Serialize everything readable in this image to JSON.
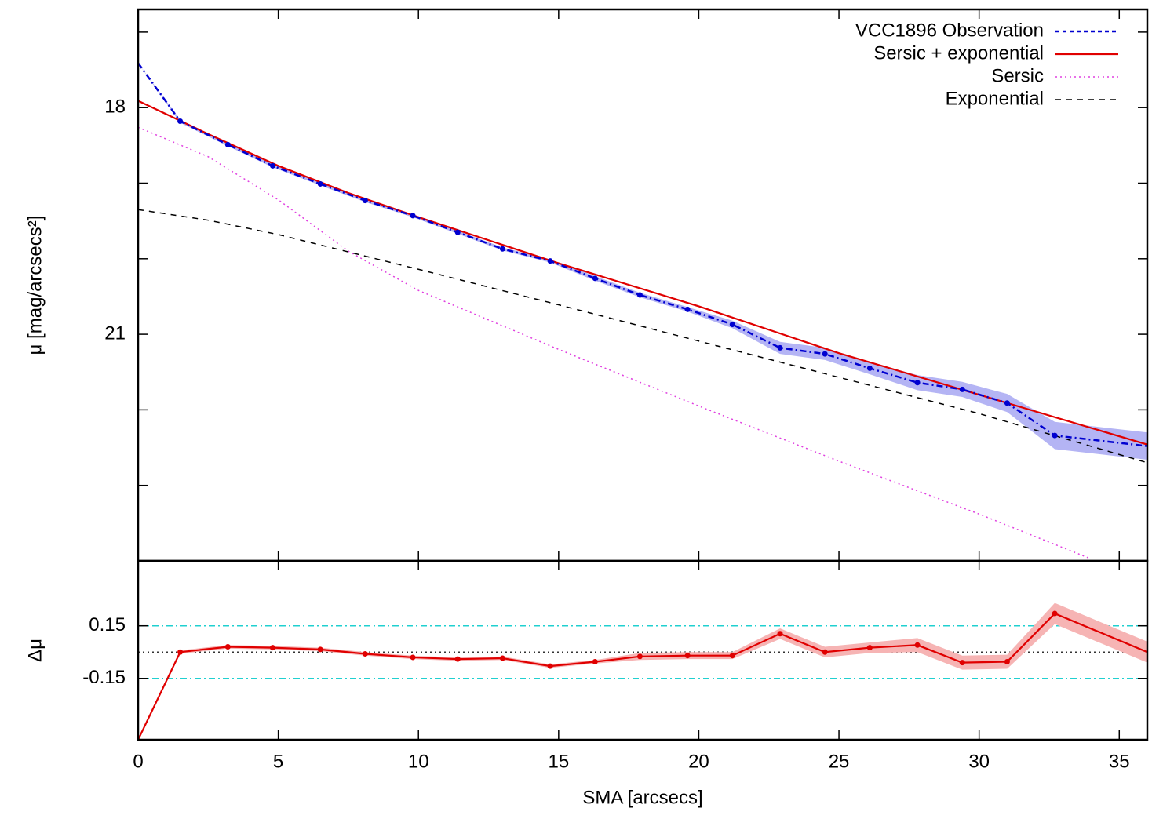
{
  "chart_data": [
    {
      "type": "line",
      "ylabel": "μ [mag/arcsecs²]",
      "xlim": [
        0,
        36
      ],
      "xticks": [
        0,
        5,
        10,
        15,
        20,
        25,
        30,
        35
      ],
      "show_xtick_labels": false,
      "ylim": [
        16.7,
        24
      ],
      "y_inverted": true,
      "yticks": [
        18,
        21
      ],
      "y_minor_ticks": [
        17,
        19,
        20,
        22,
        23
      ],
      "legend": "upper right",
      "series": [
        {
          "name": "VCC1896 Observation",
          "color": "#0000d0",
          "style": "dash-dot",
          "markers": true,
          "band_color": "#b4b4f4",
          "x": [
            0,
            1.5,
            3.2,
            4.8,
            6.5,
            8.1,
            9.8,
            11.4,
            13.0,
            14.7,
            16.3,
            17.9,
            19.6,
            21.2,
            22.9,
            24.5,
            26.1,
            27.8,
            29.4,
            31.0,
            32.7,
            36
          ],
          "values": [
            17.41,
            18.18,
            18.49,
            18.77,
            19.01,
            19.23,
            19.43,
            19.65,
            19.87,
            20.03,
            20.26,
            20.48,
            20.67,
            20.87,
            21.18,
            21.26,
            21.45,
            21.64,
            21.73,
            21.91,
            22.34,
            22.48
          ],
          "errors": [
            0,
            0.02,
            0.02,
            0.02,
            0.02,
            0.02,
            0.02,
            0.02,
            0.02,
            0.02,
            0.03,
            0.03,
            0.03,
            0.05,
            0.08,
            0.08,
            0.08,
            0.1,
            0.1,
            0.12,
            0.18,
            0.18
          ]
        },
        {
          "name": "Sersic + exponential",
          "color": "#e00000",
          "style": "solid",
          "x": [
            0,
            2.5,
            5,
            7.5,
            10,
            15,
            20,
            25,
            30,
            36
          ],
          "values": [
            17.91,
            18.35,
            18.77,
            19.13,
            19.45,
            20.06,
            20.63,
            21.25,
            21.8,
            22.46
          ]
        },
        {
          "name": "Sersic",
          "color": "#e040e0",
          "style": "dotted",
          "x": [
            0,
            2.5,
            5,
            7.5,
            10,
            15,
            20,
            25,
            30,
            33.9
          ],
          "values": [
            18.26,
            18.65,
            19.22,
            19.9,
            20.42,
            21.2,
            21.95,
            22.68,
            23.38,
            23.96
          ]
        },
        {
          "name": "Exponential",
          "color": "#000000",
          "style": "dashed",
          "x": [
            0,
            2.5,
            5,
            10,
            15,
            20,
            25,
            30,
            36
          ],
          "values": [
            19.35,
            19.49,
            19.68,
            20.14,
            20.61,
            21.09,
            21.57,
            22.05,
            22.7
          ]
        }
      ]
    },
    {
      "type": "line",
      "xlabel": "SMA [arcsecs]",
      "ylabel": "Δμ",
      "xlim": [
        0,
        36
      ],
      "xticks": [
        0,
        5,
        10,
        15,
        20,
        25,
        30,
        35
      ],
      "show_xtick_labels": true,
      "ylim": [
        -0.5,
        0.52
      ],
      "yticks": [
        0.15,
        -0.15
      ],
      "ref_lines": [
        {
          "value": 0.15,
          "color": "#20d0d0",
          "style": "dash-dot"
        },
        {
          "value": 0,
          "color": "#333333",
          "style": "dotted"
        },
        {
          "value": -0.15,
          "color": "#20d0d0",
          "style": "dash-dot"
        }
      ],
      "series": [
        {
          "color": "#e00000",
          "style": "solid",
          "markers": true,
          "band_color": "#f6b4b4",
          "x": [
            0,
            1.5,
            3.2,
            4.8,
            6.5,
            8.1,
            9.8,
            11.4,
            13.0,
            14.7,
            16.3,
            17.9,
            19.6,
            21.2,
            22.9,
            24.5,
            26.1,
            27.8,
            29.4,
            31.0,
            32.7,
            36
          ],
          "values": [
            -0.5,
            0,
            0.03,
            0.025,
            0.015,
            -0.01,
            -0.03,
            -0.04,
            -0.035,
            -0.08,
            -0.055,
            -0.025,
            -0.02,
            -0.02,
            0.105,
            0,
            0.025,
            0.04,
            -0.06,
            -0.055,
            0.22,
            0
          ],
          "errors": [
            0,
            0.01,
            0.01,
            0.01,
            0.01,
            0.01,
            0.01,
            0.01,
            0.01,
            0.01,
            0.01,
            0.02,
            0.02,
            0.02,
            0.03,
            0.03,
            0.03,
            0.04,
            0.04,
            0.04,
            0.06,
            0.06
          ]
        }
      ]
    }
  ]
}
